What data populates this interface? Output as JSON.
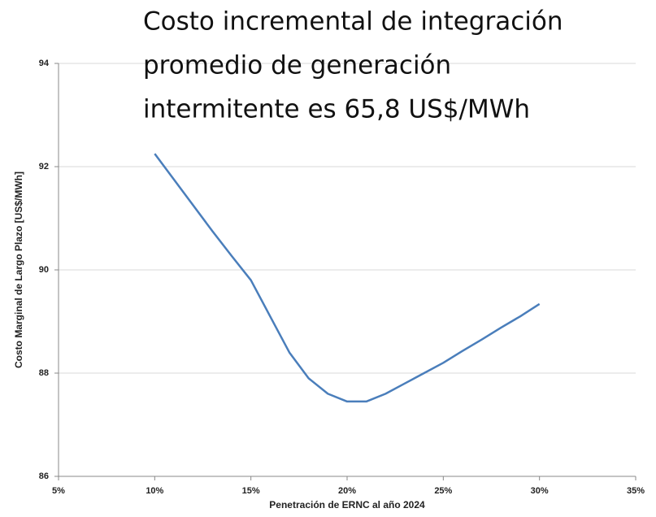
{
  "chart_data": {
    "type": "line",
    "title": [
      "Costo incremental de integración",
      "promedio de generación",
      "intermitente es 65,8 US$/MWh"
    ],
    "x_label": "Penetración de ERNC al año 2024",
    "y_label": "Costo Marginal de Largo Plazo [US$/MWh]",
    "x": [
      10,
      11,
      12,
      13,
      14,
      15,
      16,
      17,
      18,
      19,
      20,
      21,
      22,
      23,
      24,
      25,
      26,
      27,
      28,
      29,
      30
    ],
    "series": [
      {
        "color": "#4a7ebb",
        "values": [
          92.25,
          91.75,
          91.25,
          90.75,
          90.27,
          89.8,
          89.1,
          88.4,
          87.9,
          87.6,
          87.45,
          87.45,
          87.6,
          87.8,
          88.0,
          88.2,
          88.43,
          88.65,
          88.88,
          89.1,
          89.34
        ]
      }
    ],
    "xlim": [
      5,
      35
    ],
    "xticks": [
      {
        "value": 5,
        "label": "5%"
      },
      {
        "value": 10,
        "label": "10%"
      },
      {
        "value": 15,
        "label": "15%"
      },
      {
        "value": 20,
        "label": "20%"
      },
      {
        "value": 25,
        "label": "25%"
      },
      {
        "value": 30,
        "label": "30%"
      },
      {
        "value": 35,
        "label": "35%"
      }
    ],
    "ylim": [
      86,
      94
    ],
    "yticks": [
      86,
      88,
      90,
      92,
      94
    ],
    "grid": true
  }
}
